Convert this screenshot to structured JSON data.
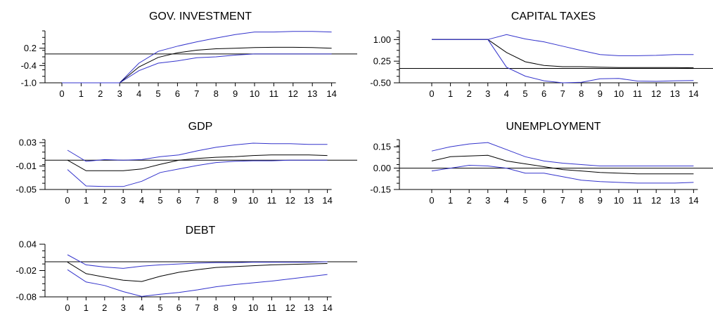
{
  "colors": {
    "band": "#3333cc",
    "center": "#000000"
  },
  "chart_data": [
    {
      "type": "line",
      "title": "GOV. INVESTMENT",
      "x": [
        0,
        1,
        2,
        3,
        4,
        5,
        6,
        7,
        8,
        9,
        10,
        11,
        12,
        13,
        14
      ],
      "ylim": [
        -1.0,
        0.8
      ],
      "yticks": [
        -1.0,
        -0.4,
        0.2
      ],
      "ytick_labels": [
        "-1.0",
        "-0.4",
        "0.2"
      ],
      "hline": 0,
      "series": [
        {
          "role": "upper",
          "values": [
            -1.0,
            -1.0,
            -1.0,
            -1.0,
            -0.32,
            0.09,
            0.27,
            0.42,
            0.55,
            0.67,
            0.76,
            0.76,
            0.78,
            0.78,
            0.76
          ]
        },
        {
          "role": "center",
          "values": [
            -1.0,
            -1.0,
            -1.0,
            -1.0,
            -0.45,
            -0.12,
            0.04,
            0.13,
            0.18,
            0.2,
            0.22,
            0.23,
            0.23,
            0.22,
            0.2
          ]
        },
        {
          "role": "lower",
          "values": [
            -1.0,
            -1.0,
            -1.0,
            -1.0,
            -0.58,
            -0.32,
            -0.24,
            -0.13,
            -0.1,
            -0.04,
            0.0,
            0.0,
            0.0,
            0.0,
            0.0
          ]
        }
      ]
    },
    {
      "type": "line",
      "title": "CAPITAL TAXES",
      "x": [
        0,
        1,
        2,
        3,
        4,
        5,
        6,
        7,
        8,
        9,
        10,
        11,
        12,
        13,
        14
      ],
      "ylim": [
        -0.5,
        1.3
      ],
      "yticks": [
        -0.5,
        0.25,
        1.0
      ],
      "ytick_labels": [
        "-0.50",
        "0.25",
        "1.00"
      ],
      "hline": 0,
      "series": [
        {
          "role": "upper",
          "values": [
            1.0,
            1.0,
            1.0,
            1.0,
            1.17,
            1.02,
            0.92,
            0.77,
            0.62,
            0.48,
            0.44,
            0.44,
            0.45,
            0.48,
            0.48
          ]
        },
        {
          "role": "center",
          "values": [
            1.0,
            1.0,
            1.0,
            1.0,
            0.55,
            0.23,
            0.1,
            0.06,
            0.06,
            0.04,
            0.03,
            0.03,
            0.03,
            0.03,
            0.02
          ]
        },
        {
          "role": "lower",
          "values": [
            1.0,
            1.0,
            1.0,
            1.0,
            0.04,
            -0.27,
            -0.43,
            -0.5,
            -0.48,
            -0.36,
            -0.35,
            -0.44,
            -0.45,
            -0.43,
            -0.42
          ]
        }
      ]
    },
    {
      "type": "line",
      "title": "GDP",
      "x": [
        0,
        1,
        2,
        3,
        4,
        5,
        6,
        7,
        8,
        9,
        10,
        11,
        12,
        13,
        14
      ],
      "ylim": [
        -0.05,
        0.035
      ],
      "yticks": [
        -0.05,
        -0.01,
        0.03
      ],
      "ytick_labels": [
        "-0.05",
        "-0.01",
        "0.03"
      ],
      "hline": 0,
      "series": [
        {
          "role": "upper",
          "values": [
            0.017,
            -0.002,
            0.001,
            0.0,
            0.001,
            0.006,
            0.009,
            0.016,
            0.022,
            0.026,
            0.029,
            0.028,
            0.028,
            0.027,
            0.027
          ]
        },
        {
          "role": "center",
          "values": [
            0.0,
            -0.018,
            -0.018,
            -0.018,
            -0.015,
            -0.007,
            0.0,
            0.003,
            0.005,
            0.006,
            0.008,
            0.009,
            0.009,
            0.009,
            0.008
          ]
        },
        {
          "role": "lower",
          "values": [
            -0.016,
            -0.044,
            -0.045,
            -0.045,
            -0.036,
            -0.021,
            -0.015,
            -0.009,
            -0.004,
            -0.002,
            -0.001,
            -0.001,
            0.0,
            0.0,
            0.0
          ]
        }
      ]
    },
    {
      "type": "line",
      "title": "UNEMPLOYMENT",
      "x": [
        0,
        1,
        2,
        3,
        4,
        5,
        6,
        7,
        8,
        9,
        10,
        11,
        12,
        13,
        14
      ],
      "ylim": [
        -0.15,
        0.2
      ],
      "yticks": [
        -0.15,
        0.0,
        0.15
      ],
      "ytick_labels": [
        "-0.15",
        "0.00",
        "0.15"
      ],
      "hline": 0,
      "series": [
        {
          "role": "upper",
          "values": [
            0.12,
            0.15,
            0.17,
            0.18,
            0.13,
            0.08,
            0.05,
            0.035,
            0.025,
            0.015,
            0.015,
            0.015,
            0.015,
            0.015,
            0.015
          ]
        },
        {
          "role": "center",
          "values": [
            0.05,
            0.08,
            0.085,
            0.09,
            0.05,
            0.03,
            0.01,
            -0.01,
            -0.02,
            -0.03,
            -0.035,
            -0.04,
            -0.04,
            -0.04,
            -0.04
          ]
        },
        {
          "role": "lower",
          "values": [
            -0.02,
            0.0,
            0.02,
            0.015,
            0.0,
            -0.035,
            -0.035,
            -0.06,
            -0.085,
            -0.095,
            -0.1,
            -0.105,
            -0.105,
            -0.105,
            -0.1
          ]
        }
      ]
    },
    {
      "type": "line",
      "title": "DEBT",
      "x": [
        0,
        1,
        2,
        3,
        4,
        5,
        6,
        7,
        8,
        9,
        10,
        11,
        12,
        13,
        14
      ],
      "ylim": [
        -0.08,
        0.04
      ],
      "yticks": [
        -0.08,
        -0.02,
        0.04
      ],
      "ytick_labels": [
        "-0.08",
        "-0.02",
        "0.04"
      ],
      "hline": 0,
      "series": [
        {
          "role": "upper",
          "values": [
            0.016,
            -0.007,
            -0.012,
            -0.015,
            -0.01,
            -0.007,
            -0.005,
            -0.003,
            -0.002,
            -0.002,
            -0.001,
            -0.001,
            -0.001,
            -0.001,
            0.0
          ]
        },
        {
          "role": "center",
          "values": [
            -0.001,
            -0.027,
            -0.035,
            -0.042,
            -0.045,
            -0.033,
            -0.024,
            -0.018,
            -0.013,
            -0.011,
            -0.009,
            -0.007,
            -0.006,
            -0.005,
            -0.004
          ]
        },
        {
          "role": "lower",
          "values": [
            -0.018,
            -0.046,
            -0.054,
            -0.068,
            -0.079,
            -0.074,
            -0.07,
            -0.064,
            -0.057,
            -0.052,
            -0.048,
            -0.044,
            -0.039,
            -0.034,
            -0.029
          ]
        }
      ]
    }
  ]
}
